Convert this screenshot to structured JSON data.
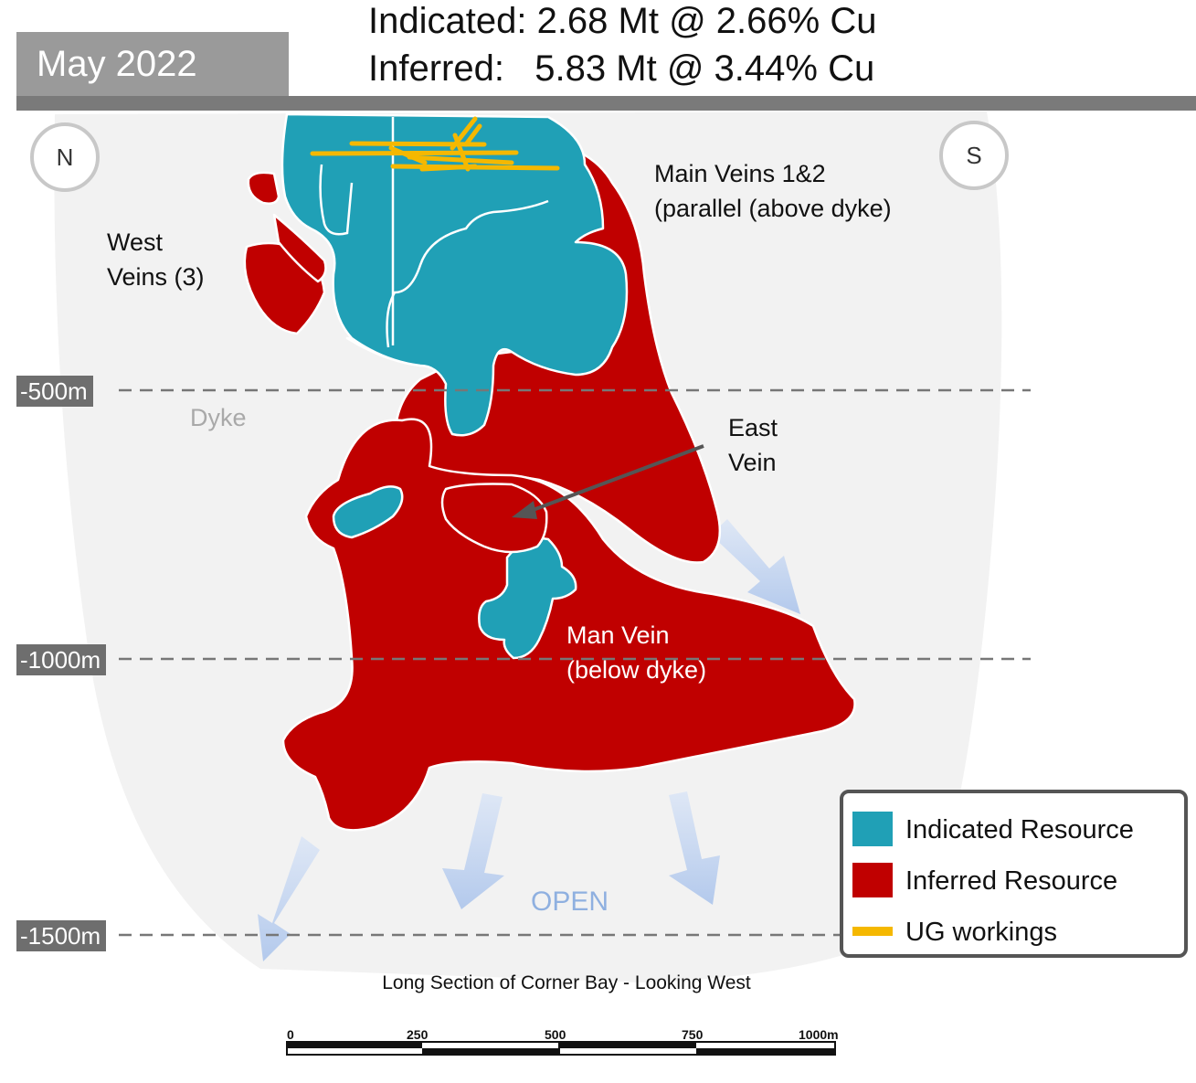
{
  "header": {
    "date": "May 2022",
    "indicated_line": "Indicated: 2.68 Mt @ 2.66% Cu",
    "inferred_line": "Inferred:   5.83 Mt @ 3.44% Cu"
  },
  "compass": {
    "north": "N",
    "south": "S"
  },
  "depths": [
    "-500m",
    "-1000m",
    "-1500m"
  ],
  "labels": {
    "west_veins_1": "West",
    "west_veins_2": "Veins (3)",
    "main_veins_1": "Main Veins 1&2",
    "main_veins_2": "(parallel (above dyke)",
    "dyke": "Dyke",
    "east_vein_1": "East",
    "east_vein_2": "Vein",
    "man_vein_1": "Man Vein",
    "man_vein_2": "(below dyke)",
    "open": "OPEN"
  },
  "legend": {
    "indicated": "Indicated Resource",
    "inferred": "Inferred Resource",
    "ug": "UG workings"
  },
  "caption": "Long Section of Corner Bay - Looking West",
  "scale_bar": [
    "0",
    "250",
    "500",
    "750",
    "1000m"
  ],
  "colors": {
    "indicated": "#20a0b6",
    "inferred": "#c00000",
    "ug_workings": "#f5b800",
    "background_zone": "#f2f2f2",
    "open_arrows": "#bcd0ee"
  }
}
